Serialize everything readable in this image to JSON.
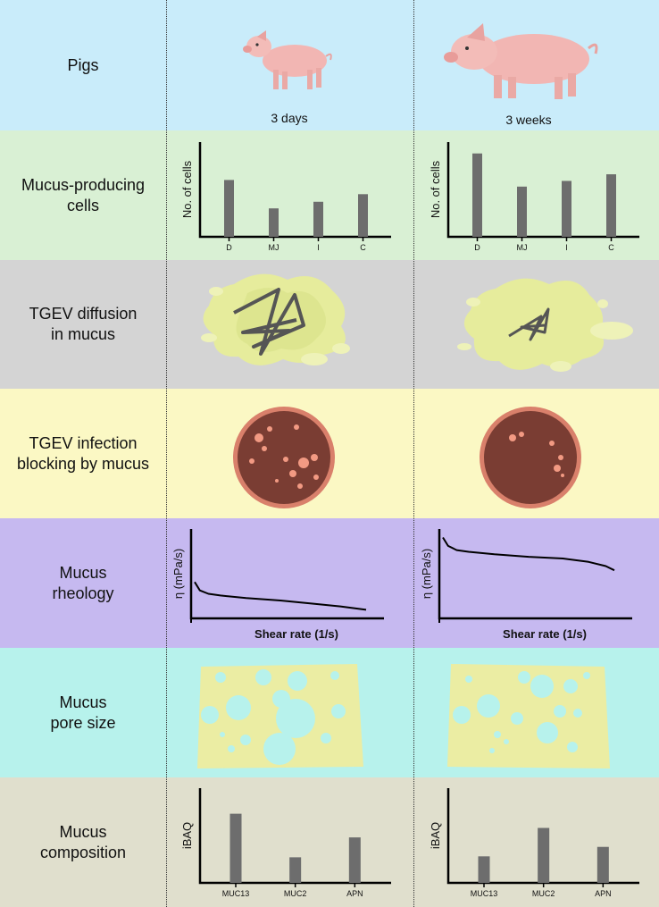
{
  "rows": [
    {
      "label": [
        "Pigs"
      ],
      "color": "#c9ecfa"
    },
    {
      "label": [
        "Mucus-producing",
        "cells"
      ],
      "color": "#d9f0d4"
    },
    {
      "label": [
        "TGEV diffusion",
        "in mucus"
      ],
      "color": "#d4d4d4"
    },
    {
      "label": [
        "TGEV infection",
        "blocking by mucus"
      ],
      "color": "#fbf8c4"
    },
    {
      "label": [
        "Mucus",
        "rheology"
      ],
      "color": "#c6b9f0"
    },
    {
      "label": [
        "Mucus",
        "pore size"
      ],
      "color": "#b7f2ec"
    },
    {
      "label": [
        "Mucus",
        "composition"
      ],
      "color": "#e0dfcd"
    }
  ],
  "ages": {
    "young": "3 days",
    "old": "3 weeks"
  },
  "chart_data": [
    {
      "id": "cells-3days",
      "type": "bar",
      "ylabel": "No. of cells",
      "categories": [
        "D",
        "MJ",
        "I",
        "C"
      ],
      "values": [
        60,
        30,
        37,
        45
      ],
      "ylim": [
        0,
        100
      ]
    },
    {
      "id": "cells-3weeks",
      "type": "bar",
      "ylabel": "No. of cells",
      "categories": [
        "D",
        "MJ",
        "I",
        "C"
      ],
      "values": [
        88,
        53,
        59,
        66
      ],
      "ylim": [
        0,
        100
      ]
    },
    {
      "id": "rheology-3days",
      "type": "line",
      "ylabel": "η (mPa/s)",
      "xlabel": "Shear rate (1/s)",
      "x": [
        0,
        0.03,
        0.08,
        0.15,
        0.3,
        0.5,
        0.7,
        0.85,
        1.0
      ],
      "y": [
        39,
        29,
        25,
        23,
        20,
        17,
        13,
        10,
        6
      ],
      "ylim": [
        0,
        100
      ]
    },
    {
      "id": "rheology-3weeks",
      "type": "line",
      "ylabel": "η (mPa/s)",
      "xlabel": "Shear rate (1/s)",
      "x": [
        0,
        0.03,
        0.08,
        0.15,
        0.3,
        0.5,
        0.7,
        0.85,
        0.95,
        1.0
      ],
      "y": [
        92,
        82,
        77,
        75,
        72,
        69,
        67,
        63,
        58,
        53
      ],
      "ylim": [
        0,
        100
      ]
    },
    {
      "id": "composition-3days",
      "type": "bar",
      "ylabel": "iBAQ",
      "categories": [
        "MUC13",
        "MUC2",
        "APN"
      ],
      "values": [
        73,
        27,
        48
      ],
      "ylim": [
        0,
        100
      ]
    },
    {
      "id": "composition-3weeks",
      "type": "bar",
      "ylabel": "iBAQ",
      "categories": [
        "MUC13",
        "MUC2",
        "APN"
      ],
      "values": [
        28,
        58,
        38
      ],
      "ylim": [
        0,
        100
      ]
    }
  ]
}
